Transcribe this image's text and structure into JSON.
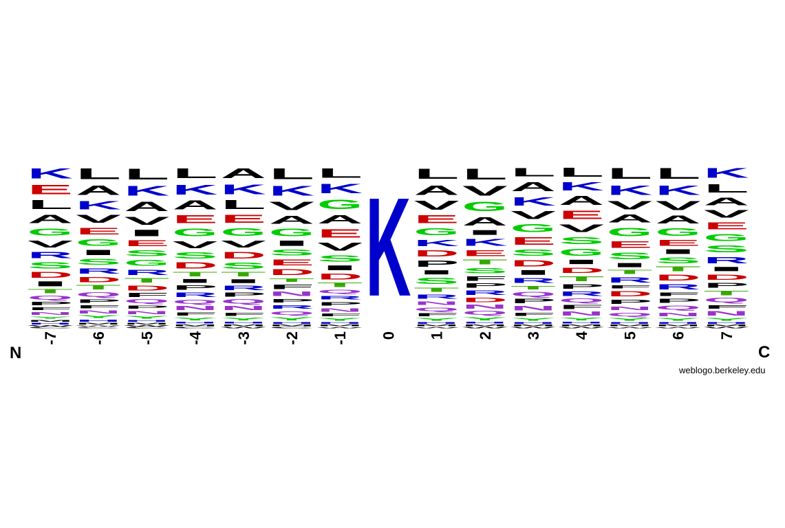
{
  "chart_data": {
    "type": "sequence-logo",
    "units": "probability",
    "positions": [
      "-7",
      "-6",
      "-5",
      "-4",
      "-3",
      "-2",
      "-1",
      "0",
      "1",
      "2",
      "3",
      "4",
      "5",
      "6",
      "7"
    ],
    "n_terminus_label": "N",
    "c_terminus_label": "C",
    "colors": {
      "K": "#0000cc",
      "R": "#0000cc",
      "H": "#0000cc",
      "D": "#cc0000",
      "E": "#cc0000",
      "G": "#00cc00",
      "S": "#00cc00",
      "T": "#33aa00",
      "Y": "#00cc00",
      "Q": "#9933cc",
      "N": "#9933cc",
      "A": "#000000",
      "V": "#000000",
      "L": "#000000",
      "I": "#000000",
      "P": "#000000",
      "F": "#000000",
      "M": "#000000",
      "W": "#000000",
      "C": "#000000"
    },
    "stacks": [
      [
        [
          "K",
          0.09
        ],
        [
          "E",
          0.085
        ],
        [
          "L",
          0.08
        ],
        [
          "A",
          0.075
        ],
        [
          "G",
          0.065
        ],
        [
          "V",
          0.065
        ],
        [
          "R",
          0.055
        ],
        [
          "S",
          0.055
        ],
        [
          "D",
          0.05
        ],
        [
          "I",
          0.045
        ],
        [
          "T",
          0.035
        ],
        [
          "Q",
          0.035
        ],
        [
          "P",
          0.03
        ],
        [
          "F",
          0.025
        ],
        [
          "N",
          0.025
        ],
        [
          "Y",
          0.02
        ],
        [
          "M",
          0.015
        ],
        [
          "H",
          0.015
        ],
        [
          "W",
          0.01
        ],
        [
          "C",
          0.01
        ]
      ],
      [
        [
          "L",
          0.1
        ],
        [
          "A",
          0.09
        ],
        [
          "K",
          0.08
        ],
        [
          "V",
          0.075
        ],
        [
          "E",
          0.065
        ],
        [
          "G",
          0.065
        ],
        [
          "I",
          0.05
        ],
        [
          "S",
          0.055
        ],
        [
          "R",
          0.05
        ],
        [
          "D",
          0.05
        ],
        [
          "T",
          0.04
        ],
        [
          "Q",
          0.04
        ],
        [
          "P",
          0.035
        ],
        [
          "F",
          0.03
        ],
        [
          "N",
          0.03
        ],
        [
          "Y",
          0.025
        ],
        [
          "H",
          0.02
        ],
        [
          "M",
          0.015
        ],
        [
          "W",
          0.01
        ],
        [
          "C",
          0.01
        ]
      ],
      [
        [
          "L",
          0.1
        ],
        [
          "K",
          0.09
        ],
        [
          "A",
          0.085
        ],
        [
          "V",
          0.075
        ],
        [
          "I",
          0.06
        ],
        [
          "E",
          0.055
        ],
        [
          "S",
          0.055
        ],
        [
          "G",
          0.055
        ],
        [
          "R",
          0.05
        ],
        [
          "T",
          0.04
        ],
        [
          "D",
          0.045
        ],
        [
          "F",
          0.035
        ],
        [
          "Q",
          0.035
        ],
        [
          "P",
          0.03
        ],
        [
          "N",
          0.03
        ],
        [
          "Y",
          0.025
        ],
        [
          "H",
          0.015
        ],
        [
          "M",
          0.015
        ],
        [
          "W",
          0.01
        ],
        [
          "C",
          0.01
        ]
      ],
      [
        [
          "L",
          0.09
        ],
        [
          "K",
          0.09
        ],
        [
          "A",
          0.08
        ],
        [
          "E",
          0.075
        ],
        [
          "G",
          0.07
        ],
        [
          "V",
          0.065
        ],
        [
          "S",
          0.055
        ],
        [
          "D",
          0.055
        ],
        [
          "T",
          0.04
        ],
        [
          "I",
          0.035
        ],
        [
          "P",
          0.04
        ],
        [
          "R",
          0.04
        ],
        [
          "Q",
          0.035
        ],
        [
          "N",
          0.035
        ],
        [
          "F",
          0.03
        ],
        [
          "Y",
          0.025
        ],
        [
          "H",
          0.015
        ],
        [
          "M",
          0.015
        ],
        [
          "C",
          0.01
        ]
      ],
      [
        [
          "A",
          0.09
        ],
        [
          "K",
          0.09
        ],
        [
          "L",
          0.08
        ],
        [
          "E",
          0.075
        ],
        [
          "G",
          0.07
        ],
        [
          "V",
          0.065
        ],
        [
          "D",
          0.06
        ],
        [
          "S",
          0.055
        ],
        [
          "T",
          0.04
        ],
        [
          "I",
          0.035
        ],
        [
          "R",
          0.04
        ],
        [
          "P",
          0.035
        ],
        [
          "Q",
          0.04
        ],
        [
          "N",
          0.035
        ],
        [
          "F",
          0.03
        ],
        [
          "Y",
          0.025
        ],
        [
          "H",
          0.015
        ],
        [
          "M",
          0.015
        ],
        [
          "W",
          0.01
        ]
      ],
      [
        [
          "L",
          0.1
        ],
        [
          "K",
          0.09
        ],
        [
          "V",
          0.08
        ],
        [
          "A",
          0.075
        ],
        [
          "G",
          0.07
        ],
        [
          "I",
          0.05
        ],
        [
          "S",
          0.055
        ],
        [
          "E",
          0.055
        ],
        [
          "D",
          0.055
        ],
        [
          "T",
          0.035
        ],
        [
          "F",
          0.04
        ],
        [
          "N",
          0.04
        ],
        [
          "P",
          0.035
        ],
        [
          "R",
          0.035
        ],
        [
          "Q",
          0.035
        ],
        [
          "Y",
          0.03
        ],
        [
          "H",
          0.015
        ],
        [
          "M",
          0.015
        ],
        [
          "C",
          0.01
        ]
      ],
      [
        [
          "L",
          0.09
        ],
        [
          "K",
          0.09
        ],
        [
          "G",
          0.09
        ],
        [
          "A",
          0.08
        ],
        [
          "E",
          0.08
        ],
        [
          "V",
          0.075
        ],
        [
          "S",
          0.06
        ],
        [
          "I",
          0.045
        ],
        [
          "D",
          0.055
        ],
        [
          "T",
          0.04
        ],
        [
          "Q",
          0.035
        ],
        [
          "R",
          0.035
        ],
        [
          "P",
          0.035
        ],
        [
          "N",
          0.035
        ],
        [
          "F",
          0.025
        ],
        [
          "Y",
          0.025
        ],
        [
          "H",
          0.015
        ],
        [
          "M",
          0.015
        ],
        [
          "W",
          0.01
        ]
      ],
      [
        [
          "K",
          1.0
        ]
      ],
      [
        [
          "L",
          0.1
        ],
        [
          "A",
          0.09
        ],
        [
          "V",
          0.085
        ],
        [
          "E",
          0.075
        ],
        [
          "G",
          0.07
        ],
        [
          "K",
          0.06
        ],
        [
          "D",
          0.06
        ],
        [
          "P",
          0.06
        ],
        [
          "I",
          0.04
        ],
        [
          "S",
          0.06
        ],
        [
          "T",
          0.04
        ],
        [
          "R",
          0.04
        ],
        [
          "N",
          0.035
        ],
        [
          "Q",
          0.035
        ],
        [
          "F",
          0.03
        ],
        [
          "Y",
          0.025
        ],
        [
          "H",
          0.015
        ],
        [
          "M",
          0.015
        ],
        [
          "W",
          0.01
        ]
      ],
      [
        [
          "L",
          0.1
        ],
        [
          "V",
          0.09
        ],
        [
          "G",
          0.085
        ],
        [
          "A",
          0.08
        ],
        [
          "I",
          0.045
        ],
        [
          "K",
          0.065
        ],
        [
          "E",
          0.055
        ],
        [
          "T",
          0.045
        ],
        [
          "S",
          0.05
        ],
        [
          "F",
          0.04
        ],
        [
          "P",
          0.04
        ],
        [
          "R",
          0.04
        ],
        [
          "D",
          0.04
        ],
        [
          "N",
          0.035
        ],
        [
          "Q",
          0.035
        ],
        [
          "Y",
          0.03
        ],
        [
          "H",
          0.015
        ],
        [
          "M",
          0.015
        ],
        [
          "W",
          0.01
        ]
      ],
      [
        [
          "L",
          0.08
        ],
        [
          "A",
          0.085
        ],
        [
          "K",
          0.08
        ],
        [
          "V",
          0.075
        ],
        [
          "G",
          0.075
        ],
        [
          "E",
          0.07
        ],
        [
          "S",
          0.06
        ],
        [
          "D",
          0.06
        ],
        [
          "I",
          0.045
        ],
        [
          "R",
          0.045
        ],
        [
          "T",
          0.035
        ],
        [
          "Q",
          0.04
        ],
        [
          "P",
          0.04
        ],
        [
          "N",
          0.04
        ],
        [
          "F",
          0.03
        ],
        [
          "Y",
          0.025
        ],
        [
          "H",
          0.015
        ],
        [
          "M",
          0.015
        ],
        [
          "W",
          0.01
        ]
      ],
      [
        [
          "L",
          0.08
        ],
        [
          "K",
          0.075
        ],
        [
          "A",
          0.08
        ],
        [
          "E",
          0.075
        ],
        [
          "V",
          0.07
        ],
        [
          "S",
          0.065
        ],
        [
          "G",
          0.065
        ],
        [
          "I",
          0.04
        ],
        [
          "D",
          0.05
        ],
        [
          "T",
          0.045
        ],
        [
          "P",
          0.04
        ],
        [
          "R",
          0.04
        ],
        [
          "Q",
          0.035
        ],
        [
          "F",
          0.035
        ],
        [
          "N",
          0.035
        ],
        [
          "Y",
          0.025
        ],
        [
          "H",
          0.015
        ],
        [
          "M",
          0.015
        ],
        [
          "W",
          0.01
        ]
      ],
      [
        [
          "L",
          0.1
        ],
        [
          "K",
          0.09
        ],
        [
          "V",
          0.08
        ],
        [
          "A",
          0.075
        ],
        [
          "G",
          0.08
        ],
        [
          "E",
          0.065
        ],
        [
          "S",
          0.065
        ],
        [
          "I",
          0.04
        ],
        [
          "T",
          0.04
        ],
        [
          "R",
          0.05
        ],
        [
          "F",
          0.03
        ],
        [
          "D",
          0.05
        ],
        [
          "P",
          0.04
        ],
        [
          "N",
          0.035
        ],
        [
          "Q",
          0.035
        ],
        [
          "Y",
          0.025
        ],
        [
          "H",
          0.015
        ],
        [
          "M",
          0.015
        ],
        [
          "W",
          0.01
        ]
      ],
      [
        [
          "L",
          0.1
        ],
        [
          "K",
          0.09
        ],
        [
          "V",
          0.085
        ],
        [
          "A",
          0.075
        ],
        [
          "G",
          0.07
        ],
        [
          "E",
          0.055
        ],
        [
          "I",
          0.045
        ],
        [
          "S",
          0.055
        ],
        [
          "T",
          0.045
        ],
        [
          "D",
          0.055
        ],
        [
          "R",
          0.05
        ],
        [
          "F",
          0.035
        ],
        [
          "P",
          0.04
        ],
        [
          "Q",
          0.04
        ],
        [
          "N",
          0.035
        ],
        [
          "Y",
          0.025
        ],
        [
          "H",
          0.015
        ],
        [
          "M",
          0.015
        ],
        [
          "W",
          0.01
        ]
      ],
      [
        [
          "K",
          0.09
        ],
        [
          "L",
          0.08
        ],
        [
          "A",
          0.07
        ],
        [
          "V",
          0.07
        ],
        [
          "E",
          0.065
        ],
        [
          "G",
          0.065
        ],
        [
          "S",
          0.065
        ],
        [
          "R",
          0.06
        ],
        [
          "I",
          0.04
        ],
        [
          "D",
          0.05
        ],
        [
          "P",
          0.045
        ],
        [
          "T",
          0.04
        ],
        [
          "Q",
          0.04
        ],
        [
          "F",
          0.035
        ],
        [
          "N",
          0.04
        ],
        [
          "Y",
          0.025
        ],
        [
          "H",
          0.015
        ],
        [
          "M",
          0.015
        ],
        [
          "W",
          0.01
        ]
      ]
    ]
  },
  "footer": {
    "credit": "weblogo.berkeley.edu"
  }
}
